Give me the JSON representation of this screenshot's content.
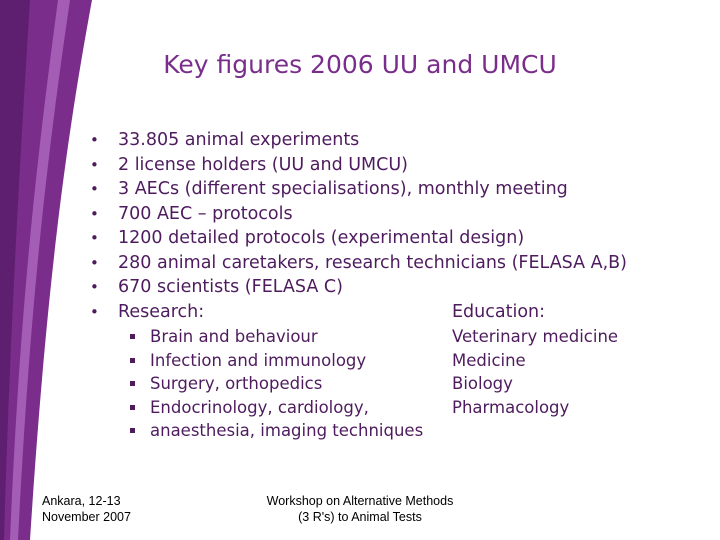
{
  "title": "Key figures 2006 UU and UMCU",
  "bullets": [
    "33.805 animal experiments",
    "2 license holders (UU and UMCU)",
    "3 AECs (different specialisations), monthly meeting",
    "700 AEC – protocols",
    "1200 detailed protocols (experimental design)",
    "280 animal caretakers, research technicians (FELASA A,B)",
    "670 scientists (FELASA C)"
  ],
  "research": {
    "label": "Research:",
    "items": [
      "Brain and behaviour",
      "Infection and immunology",
      "Surgery, orthopedics",
      "Endocrinology, cardiology,",
      "anaesthesia, imaging techniques"
    ]
  },
  "education": {
    "label": "Education:",
    "items": [
      "Veterinary medicine",
      "Medicine",
      "Biology",
      "Pharmacology"
    ]
  },
  "footer": {
    "left": [
      "Ankara, 12-13",
      "November 2007"
    ],
    "center": [
      "Workshop on Alternative Methods",
      "(3 R's) to Animal Tests"
    ]
  }
}
